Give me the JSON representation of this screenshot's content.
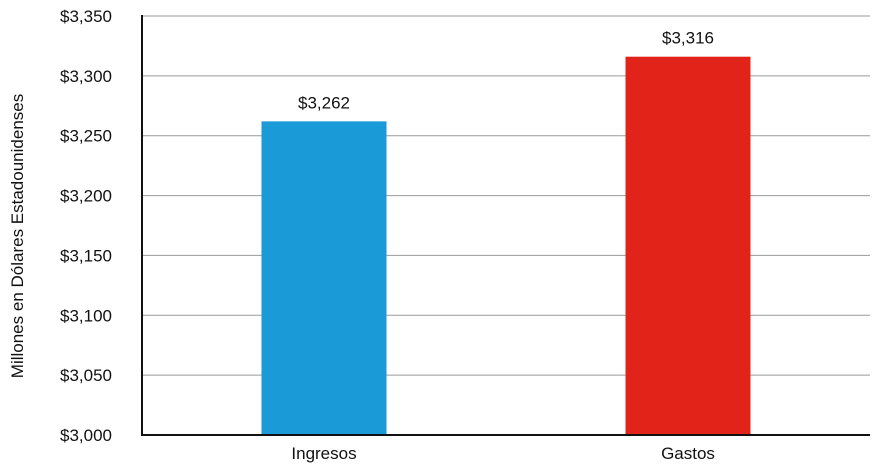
{
  "chart_data": {
    "type": "bar",
    "categories": [
      "Ingresos",
      "Gastos"
    ],
    "values": [
      3262,
      3316
    ],
    "data_labels": [
      "$3,262",
      "$3,316"
    ],
    "colors": [
      "#1a9ad6",
      "#e2231a"
    ],
    "title": "",
    "xlabel": "",
    "ylabel": "Millones en Dólares Estadounidenses",
    "ylim": [
      3000,
      3350
    ],
    "yticks": [
      3000,
      3050,
      3100,
      3150,
      3200,
      3250,
      3300,
      3350
    ],
    "ytick_labels": [
      "$3,000",
      "$3,050",
      "$3,100",
      "$3,150",
      "$3,200",
      "$3,250",
      "$3,300",
      "$3,350"
    ],
    "grid": true,
    "legend": "none"
  }
}
